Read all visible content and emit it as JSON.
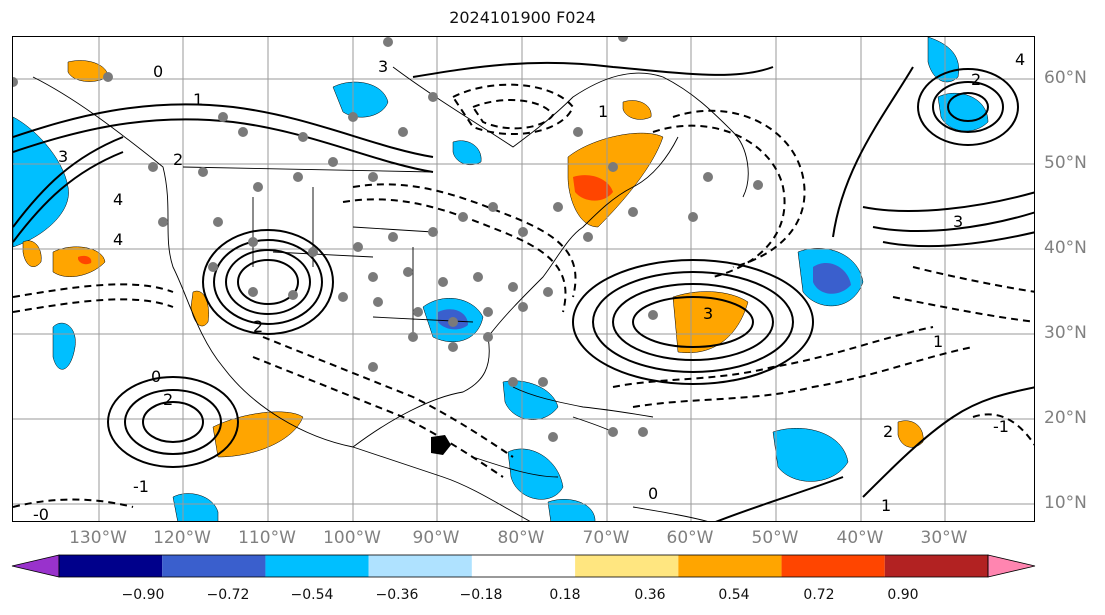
{
  "title": "2024101900 F024",
  "map": {
    "lon_labels": [
      "130°W",
      "120°W",
      "110°W",
      "100°W",
      "90°W",
      "80°W",
      "70°W",
      "60°W",
      "50°W",
      "40°W",
      "30°W"
    ],
    "lat_labels": [
      "60°N",
      "50°N",
      "40°N",
      "30°N",
      "20°N",
      "10°N"
    ],
    "contour_labels": [
      "0",
      "1",
      "2",
      "3",
      "4",
      "2",
      "3",
      "1",
      "0",
      "-1",
      "-0",
      "2",
      "1",
      "3",
      "4",
      "2",
      "0",
      "1",
      "-1",
      "2",
      "4",
      "3"
    ]
  },
  "colorbar": {
    "ticks": [
      "−0.90",
      "−0.72",
      "−0.54",
      "−0.36",
      "−0.18",
      "0.18",
      "0.36",
      "0.54",
      "0.72",
      "0.90"
    ],
    "colors": [
      "#9932cc",
      "#00008b",
      "#3a5fcd",
      "#00bfff",
      "#afe2ff",
      "#ffffff",
      "#ffe680",
      "#ffa500",
      "#ff4500",
      "#b22222",
      "#ff85b0"
    ]
  }
}
